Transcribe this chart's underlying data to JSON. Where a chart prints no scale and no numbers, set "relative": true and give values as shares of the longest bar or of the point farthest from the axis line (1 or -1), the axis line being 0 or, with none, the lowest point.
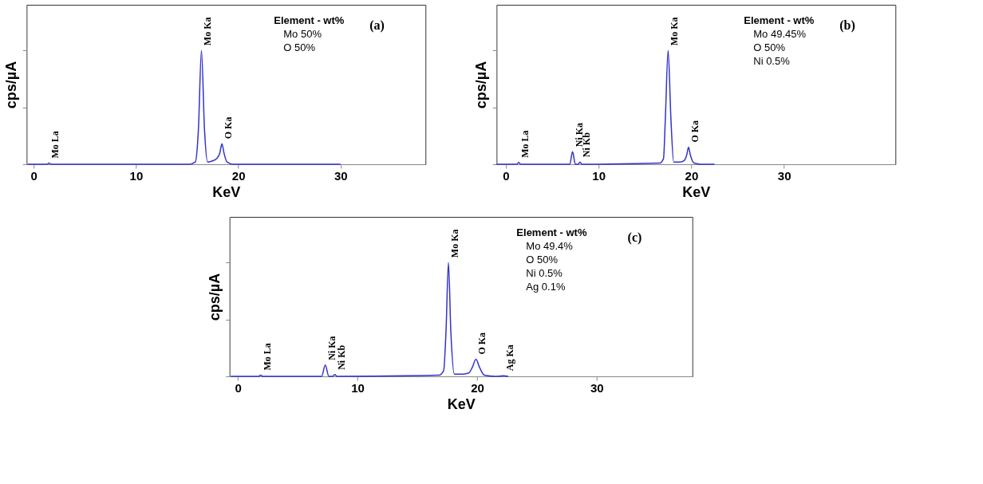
{
  "chart_data": [
    {
      "type": "line",
      "title": "(a)",
      "xlabel": "KeV",
      "ylabel": "cps/µA",
      "relative": true,
      "xlim": [
        -0.7,
        38.3
      ],
      "xticks": [
        0,
        10,
        20,
        30
      ],
      "grid": false,
      "series": [
        {
          "color": "#3333cc",
          "x": [
            -0.6,
            1.3,
            1.5,
            1.7,
            15.2,
            15.8,
            16.1,
            16.4,
            16.7,
            17.0,
            17.5,
            17.9,
            18.2,
            18.4,
            18.6,
            18.9,
            19.5,
            30
          ],
          "values": [
            0,
            0,
            0.01,
            0,
            0,
            0.02,
            0.3,
            1,
            0.3,
            0.02,
            0.03,
            0.05,
            0.1,
            0.18,
            0.1,
            0.02,
            0,
            0
          ]
        }
      ],
      "annotations": [
        {
          "text": "Mo La",
          "x": 1.5,
          "y": 0.01
        },
        {
          "text": "Mo Ka",
          "x": 16.4,
          "y": 1
        },
        {
          "text": "O Ka",
          "x": 18.4,
          "y": 0.18
        },
        "Element - wt%",
        "Mo    50%",
        "O      50%"
      ]
    },
    {
      "type": "line",
      "title": "(b)",
      "xlabel": "KeV",
      "ylabel": "cps/µA",
      "relative": true,
      "xlim": [
        -1,
        42
      ],
      "xticks": [
        0,
        10,
        20,
        30
      ],
      "grid": false,
      "series": [
        {
          "color": "#3333cc",
          "x": [
            -1,
            1.2,
            1.4,
            1.6,
            6.9,
            7.2,
            7.5,
            7.8,
            8.0,
            8.2,
            16.6,
            17.0,
            17.2,
            17.5,
            17.8,
            18.1,
            18.8,
            19.2,
            19.5,
            19.7,
            19.9,
            20.3,
            21,
            22.5
          ],
          "values": [
            0,
            0,
            0.015,
            0,
            0,
            0.11,
            0,
            0,
            0.02,
            0,
            0.01,
            0.05,
            0.4,
            1,
            0.4,
            0.02,
            0.02,
            0.03,
            0.08,
            0.15,
            0.08,
            0.01,
            0,
            0
          ]
        }
      ],
      "annotations": [
        {
          "text": "Mo La",
          "x": 1.4,
          "y": 0.015
        },
        {
          "text": "Ni Ka",
          "x": 7.2,
          "y": 0.11
        },
        {
          "text": "Ni Kb",
          "x": 8.0,
          "y": 0.02
        },
        {
          "text": "Mo Ka",
          "x": 17.5,
          "y": 1
        },
        {
          "text": "O Ka",
          "x": 19.7,
          "y": 0.15
        },
        "Element - wt%",
        "Mo    49.45%",
        "O      50%",
        "Ni     0.5%"
      ]
    },
    {
      "type": "line",
      "title": "(c)",
      "xlabel": "KeV",
      "ylabel": "cps/µA",
      "relative": true,
      "xlim": [
        -0.7,
        38
      ],
      "xticks": [
        0,
        10,
        20,
        30
      ],
      "grid": false,
      "series": [
        {
          "color": "#3333cc",
          "x": [
            -0.6,
            1.7,
            1.9,
            2.1,
            7.0,
            7.3,
            7.6,
            7.9,
            8.1,
            8.3,
            16.8,
            17.2,
            17.4,
            17.6,
            17.8,
            18.1,
            18.8,
            19.3,
            19.6,
            19.9,
            20.2,
            20.6,
            21.5,
            22.2,
            22.6
          ],
          "values": [
            0,
            0,
            0.01,
            0,
            0,
            0.1,
            0,
            0,
            0.015,
            0,
            0.01,
            0.05,
            0.4,
            1,
            0.4,
            0.02,
            0.02,
            0.03,
            0.08,
            0.15,
            0.08,
            0.01,
            0,
            0.005,
            0
          ]
        }
      ],
      "annotations": [
        {
          "text": "Mo La",
          "x": 1.9,
          "y": 0.01
        },
        {
          "text": "Ni Ka",
          "x": 7.3,
          "y": 0.1
        },
        {
          "text": "Ni Kb",
          "x": 8.1,
          "y": 0.015
        },
        {
          "text": "Mo Ka",
          "x": 17.6,
          "y": 1
        },
        {
          "text": "O Ka",
          "x": 19.9,
          "y": 0.15
        },
        {
          "text": "Ag Ka",
          "x": 22.2,
          "y": 0.005
        },
        "Element - wt%",
        "Mo    49.4%",
        "O      50%",
        "Ni     0.5%",
        "Ag     0.1%"
      ]
    }
  ]
}
